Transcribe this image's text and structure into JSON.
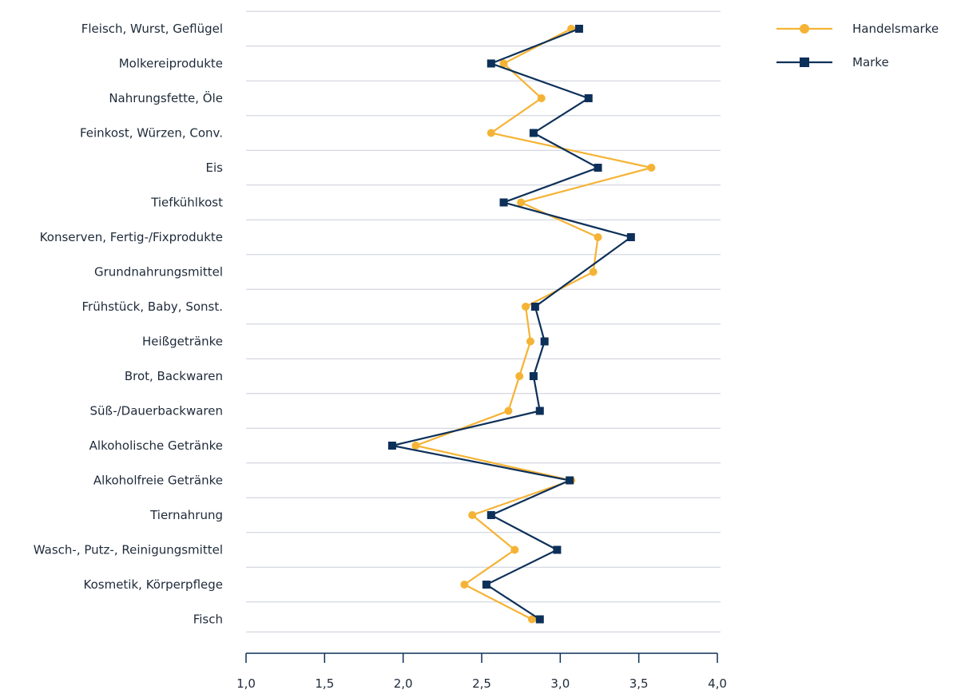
{
  "chart_data": {
    "type": "line",
    "orientation": "horizontal",
    "categories": [
      "Fleisch, Wurst, Geflügel",
      "Molkereiprodukte",
      "Nahrungsfette, Öle",
      "Feinkost, Würzen, Conv.",
      "Eis",
      "Tiefkühlkost",
      "Konserven, Fertig-/Fixprodukte",
      "Grundnahrungsmittel",
      "Frühstück, Baby, Sonst.",
      "Heißgetränke",
      "Brot, Backwaren",
      "Süß-/Dauerbackwaren",
      "Alkoholische Getränke",
      "Alkoholfreie Getränke",
      "Tiernahrung",
      "Wasch-, Putz-, Reinigungsmittel",
      "Kosmetik, Körperpflege",
      "Fisch"
    ],
    "series": [
      {
        "name": "Handelsmarke",
        "color": "#f5b335",
        "marker": "circle",
        "values": [
          3.07,
          2.64,
          2.88,
          2.56,
          3.58,
          2.75,
          3.24,
          3.21,
          2.78,
          2.81,
          2.74,
          2.67,
          2.08,
          3.07,
          2.44,
          2.71,
          2.39,
          2.82
        ]
      },
      {
        "name": "Marke",
        "color": "#0d3059",
        "marker": "square",
        "values": [
          3.12,
          2.56,
          3.18,
          2.83,
          3.24,
          2.64,
          3.45,
          null,
          2.84,
          2.9,
          2.83,
          2.87,
          1.93,
          3.06,
          2.56,
          2.98,
          2.53,
          2.87
        ]
      }
    ],
    "xlim": [
      1.0,
      4.0
    ],
    "xticks": [
      "1,0",
      "1,5",
      "2,0",
      "2,5",
      "3,0",
      "3,5",
      "4,0"
    ],
    "grid": true,
    "legend_position": "top-right",
    "title": "",
    "xlabel": "",
    "ylabel": ""
  }
}
